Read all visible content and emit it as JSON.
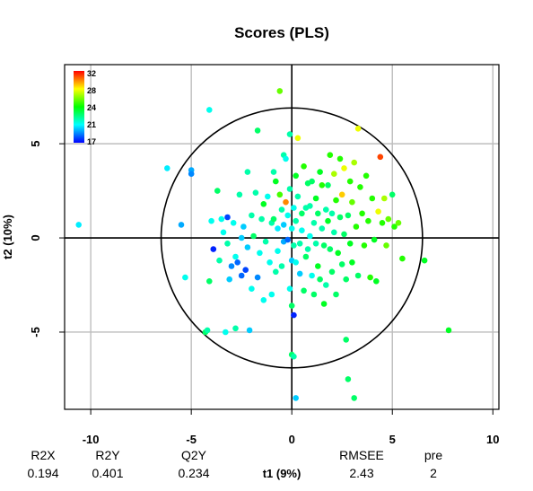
{
  "chart_data": {
    "type": "scatter",
    "title": "Scores (PLS)",
    "xlabel": "t1 (9%)",
    "ylabel": "t2 (10%)",
    "xlim": [
      -11.3,
      10.3
    ],
    "ylim": [
      -9.1,
      9.2
    ],
    "x_ticks": [
      -10,
      -5,
      0,
      5,
      10
    ],
    "y_ticks": [
      -5,
      0,
      5
    ],
    "grid": true,
    "reference_lines": [
      {
        "axis": "x",
        "value": 0
      },
      {
        "axis": "y",
        "value": 0
      }
    ],
    "ellipse": {
      "center": [
        0,
        0
      ],
      "rx": 6.5,
      "ry": 6.9
    },
    "color_scale": {
      "label_values": [
        "32",
        "28",
        "24",
        "21",
        "17"
      ],
      "min": 17,
      "max": 32,
      "colors": [
        "#0000ff",
        "#00ffff",
        "#00ff00",
        "#ffff00",
        "#ff0000"
      ]
    },
    "points": [
      {
        "x": -10.6,
        "y": 0.7,
        "c": 20.5
      },
      {
        "x": -6.2,
        "y": 3.7,
        "c": 20.5
      },
      {
        "x": -5.5,
        "y": 0.7,
        "c": 19.5
      },
      {
        "x": -5.3,
        "y": -2.1,
        "c": 21
      },
      {
        "x": -5.0,
        "y": 3.6,
        "c": 19.5
      },
      {
        "x": -5.0,
        "y": 3.4,
        "c": 19
      },
      {
        "x": -4.3,
        "y": -5.0,
        "c": 23
      },
      {
        "x": -4.2,
        "y": -4.9,
        "c": 22
      },
      {
        "x": -4.1,
        "y": 6.8,
        "c": 21
      },
      {
        "x": -4.1,
        "y": -2.3,
        "c": 23
      },
      {
        "x": -4.0,
        "y": 0.9,
        "c": 21
      },
      {
        "x": -3.9,
        "y": -0.6,
        "c": 17.5
      },
      {
        "x": -3.7,
        "y": 2.5,
        "c": 23
      },
      {
        "x": -3.6,
        "y": -1.2,
        "c": 22
      },
      {
        "x": -3.5,
        "y": 1.0,
        "c": 21
      },
      {
        "x": -3.4,
        "y": 0.3,
        "c": 21
      },
      {
        "x": -3.3,
        "y": -5.0,
        "c": 21
      },
      {
        "x": -3.2,
        "y": 1.1,
        "c": 18
      },
      {
        "x": -3.2,
        "y": -0.3,
        "c": 22
      },
      {
        "x": -3.1,
        "y": -2.2,
        "c": 20
      },
      {
        "x": -3.0,
        "y": -1.5,
        "c": 19
      },
      {
        "x": -2.9,
        "y": 0.8,
        "c": 21
      },
      {
        "x": -2.8,
        "y": -4.8,
        "c": 22
      },
      {
        "x": -2.8,
        "y": -1.0,
        "c": 21
      },
      {
        "x": -2.7,
        "y": -1.3,
        "c": 18.5
      },
      {
        "x": -2.6,
        "y": 2.3,
        "c": 22
      },
      {
        "x": -2.5,
        "y": 0.0,
        "c": 20
      },
      {
        "x": -2.5,
        "y": -2.0,
        "c": 18.5
      },
      {
        "x": -2.4,
        "y": 0.6,
        "c": 20
      },
      {
        "x": -2.3,
        "y": -1.7,
        "c": 18
      },
      {
        "x": -2.2,
        "y": 3.5,
        "c": 22
      },
      {
        "x": -2.2,
        "y": -0.5,
        "c": 20
      },
      {
        "x": -2.1,
        "y": -4.9,
        "c": 20
      },
      {
        "x": -2.0,
        "y": 1.2,
        "c": 22
      },
      {
        "x": -2.0,
        "y": -2.7,
        "c": 21
      },
      {
        "x": -1.9,
        "y": 0.1,
        "c": 23
      },
      {
        "x": -1.8,
        "y": 2.4,
        "c": 22
      },
      {
        "x": -1.7,
        "y": 5.7,
        "c": 23
      },
      {
        "x": -1.7,
        "y": -2.1,
        "c": 19
      },
      {
        "x": -1.6,
        "y": -0.8,
        "c": 21
      },
      {
        "x": -1.5,
        "y": 1.0,
        "c": 22
      },
      {
        "x": -1.4,
        "y": 1.8,
        "c": 24
      },
      {
        "x": -1.4,
        "y": -3.3,
        "c": 21
      },
      {
        "x": -1.3,
        "y": -0.2,
        "c": 22
      },
      {
        "x": -1.2,
        "y": 2.2,
        "c": 21
      },
      {
        "x": -1.1,
        "y": -1.3,
        "c": 21
      },
      {
        "x": -1.0,
        "y": 0.8,
        "c": 22
      },
      {
        "x": -1.0,
        "y": -3.0,
        "c": 21
      },
      {
        "x": -0.9,
        "y": 3.5,
        "c": 22
      },
      {
        "x": -0.9,
        "y": 1.0,
        "c": 23
      },
      {
        "x": -0.8,
        "y": -1.8,
        "c": 22
      },
      {
        "x": -0.8,
        "y": 3.0,
        "c": 24
      },
      {
        "x": -0.7,
        "y": 0.5,
        "c": 20.5
      },
      {
        "x": -0.7,
        "y": -0.7,
        "c": 21
      },
      {
        "x": -0.6,
        "y": 2.3,
        "c": 25.5
      },
      {
        "x": -0.6,
        "y": 7.8,
        "c": 26
      },
      {
        "x": -0.5,
        "y": 1.5,
        "c": 22
      },
      {
        "x": -0.5,
        "y": -1.5,
        "c": 22
      },
      {
        "x": -0.4,
        "y": -0.2,
        "c": 19.5
      },
      {
        "x": -0.4,
        "y": 4.4,
        "c": 22
      },
      {
        "x": -0.4,
        "y": 0.7,
        "c": 20
      },
      {
        "x": -0.3,
        "y": 1.9,
        "c": 30
      },
      {
        "x": -0.3,
        "y": 4.2,
        "c": 21
      },
      {
        "x": -0.2,
        "y": -0.1,
        "c": 18.5
      },
      {
        "x": -0.2,
        "y": 1.2,
        "c": 21
      },
      {
        "x": -0.1,
        "y": 2.6,
        "c": 22
      },
      {
        "x": -0.1,
        "y": -2.7,
        "c": 21
      },
      {
        "x": -0.1,
        "y": 5.5,
        "c": 22
      },
      {
        "x": 0.0,
        "y": 0.5,
        "c": 21
      },
      {
        "x": 0.0,
        "y": -1.2,
        "c": 20
      },
      {
        "x": 0.0,
        "y": -6.2,
        "c": 23
      },
      {
        "x": 0.0,
        "y": -3.6,
        "c": 23
      },
      {
        "x": 0.1,
        "y": 1.6,
        "c": 21
      },
      {
        "x": 0.1,
        "y": -0.4,
        "c": 22
      },
      {
        "x": 0.1,
        "y": -4.1,
        "c": 17.5
      },
      {
        "x": 0.1,
        "y": -6.3,
        "c": 22
      },
      {
        "x": 0.2,
        "y": 3.3,
        "c": 24
      },
      {
        "x": 0.2,
        "y": 0.9,
        "c": 22
      },
      {
        "x": 0.2,
        "y": -1.3,
        "c": 21
      },
      {
        "x": 0.2,
        "y": -8.5,
        "c": 20
      },
      {
        "x": 0.3,
        "y": 5.3,
        "c": 28
      },
      {
        "x": 0.3,
        "y": 2.2,
        "c": 22
      },
      {
        "x": 0.4,
        "y": -0.3,
        "c": 22
      },
      {
        "x": 0.4,
        "y": -1.9,
        "c": 20
      },
      {
        "x": 0.5,
        "y": 1.3,
        "c": 23
      },
      {
        "x": 0.5,
        "y": 0.4,
        "c": 21
      },
      {
        "x": 0.6,
        "y": 3.8,
        "c": 25
      },
      {
        "x": 0.6,
        "y": -2.8,
        "c": 23
      },
      {
        "x": 0.7,
        "y": 1.6,
        "c": 22
      },
      {
        "x": 0.7,
        "y": -1.0,
        "c": 23
      },
      {
        "x": 0.8,
        "y": 2.9,
        "c": 23
      },
      {
        "x": 0.8,
        "y": -0.6,
        "c": 22
      },
      {
        "x": 0.9,
        "y": 1.7,
        "c": 22
      },
      {
        "x": 0.9,
        "y": 0.1,
        "c": 21
      },
      {
        "x": 1.0,
        "y": -2.0,
        "c": 21
      },
      {
        "x": 1.0,
        "y": 3.0,
        "c": 23
      },
      {
        "x": 1.1,
        "y": 0.8,
        "c": 22
      },
      {
        "x": 1.1,
        "y": -3.0,
        "c": 23
      },
      {
        "x": 1.2,
        "y": 2.1,
        "c": 24
      },
      {
        "x": 1.2,
        "y": -0.3,
        "c": 22
      },
      {
        "x": 1.3,
        "y": 1.3,
        "c": 23
      },
      {
        "x": 1.3,
        "y": -1.5,
        "c": 24
      },
      {
        "x": 1.4,
        "y": 3.5,
        "c": 24
      },
      {
        "x": 1.4,
        "y": -2.2,
        "c": 23
      },
      {
        "x": 1.5,
        "y": 0.5,
        "c": 22
      },
      {
        "x": 1.5,
        "y": 2.8,
        "c": 25
      },
      {
        "x": 1.6,
        "y": -0.4,
        "c": 23
      },
      {
        "x": 1.6,
        "y": -3.5,
        "c": 24
      },
      {
        "x": 1.7,
        "y": 1.5,
        "c": 22
      },
      {
        "x": 1.7,
        "y": -2.5,
        "c": 22
      },
      {
        "x": 1.8,
        "y": 2.8,
        "c": 23
      },
      {
        "x": 1.8,
        "y": 0.9,
        "c": 24
      },
      {
        "x": 1.9,
        "y": -0.6,
        "c": 23
      },
      {
        "x": 1.9,
        "y": 4.4,
        "c": 25
      },
      {
        "x": 2.0,
        "y": 1.3,
        "c": 22
      },
      {
        "x": 2.0,
        "y": -1.8,
        "c": 23
      },
      {
        "x": 2.1,
        "y": 3.4,
        "c": 27
      },
      {
        "x": 2.1,
        "y": 0.3,
        "c": 22
      },
      {
        "x": 2.2,
        "y": -3.0,
        "c": 23
      },
      {
        "x": 2.2,
        "y": 2.0,
        "c": 25
      },
      {
        "x": 2.3,
        "y": -0.8,
        "c": 24
      },
      {
        "x": 2.4,
        "y": 1.1,
        "c": 23
      },
      {
        "x": 2.4,
        "y": 4.2,
        "c": 25
      },
      {
        "x": 2.5,
        "y": -1.4,
        "c": 23
      },
      {
        "x": 2.5,
        "y": 2.3,
        "c": 29
      },
      {
        "x": 2.6,
        "y": 3.7,
        "c": 28
      },
      {
        "x": 2.6,
        "y": 0.2,
        "c": 23
      },
      {
        "x": 2.7,
        "y": -2.2,
        "c": 23
      },
      {
        "x": 2.7,
        "y": -5.4,
        "c": 23
      },
      {
        "x": 2.8,
        "y": 1.2,
        "c": 23
      },
      {
        "x": 2.8,
        "y": -7.5,
        "c": 23
      },
      {
        "x": 2.9,
        "y": 3.0,
        "c": 25
      },
      {
        "x": 2.9,
        "y": -0.3,
        "c": 24
      },
      {
        "x": 3.0,
        "y": 1.9,
        "c": 26
      },
      {
        "x": 3.0,
        "y": -1.3,
        "c": 24
      },
      {
        "x": 3.1,
        "y": 4.0,
        "c": 27
      },
      {
        "x": 3.1,
        "y": -8.5,
        "c": 23
      },
      {
        "x": 3.2,
        "y": 0.6,
        "c": 25
      },
      {
        "x": 3.3,
        "y": 5.8,
        "c": 28
      },
      {
        "x": 3.3,
        "y": -2.0,
        "c": 23
      },
      {
        "x": 3.4,
        "y": 2.7,
        "c": 25
      },
      {
        "x": 3.5,
        "y": 1.3,
        "c": 25
      },
      {
        "x": 3.6,
        "y": -0.4,
        "c": 25
      },
      {
        "x": 3.7,
        "y": 3.3,
        "c": 25
      },
      {
        "x": 3.8,
        "y": 0.9,
        "c": 25
      },
      {
        "x": 3.9,
        "y": -2.1,
        "c": 25
      },
      {
        "x": 4.0,
        "y": 2.1,
        "c": 25
      },
      {
        "x": 4.1,
        "y": -0.1,
        "c": 24
      },
      {
        "x": 4.2,
        "y": -2.3,
        "c": 24
      },
      {
        "x": 4.3,
        "y": 1.4,
        "c": 28
      },
      {
        "x": 4.4,
        "y": 4.3,
        "c": 31
      },
      {
        "x": 4.5,
        "y": 0.8,
        "c": 25
      },
      {
        "x": 4.6,
        "y": 2.1,
        "c": 27
      },
      {
        "x": 4.7,
        "y": -0.4,
        "c": 26
      },
      {
        "x": 4.8,
        "y": 1.0,
        "c": 26
      },
      {
        "x": 5.0,
        "y": 2.3,
        "c": 23
      },
      {
        "x": 5.1,
        "y": 0.6,
        "c": 25
      },
      {
        "x": 5.3,
        "y": 0.8,
        "c": 26
      },
      {
        "x": 5.5,
        "y": -1.1,
        "c": 25
      },
      {
        "x": 6.6,
        "y": -1.2,
        "c": 24
      },
      {
        "x": 7.8,
        "y": -4.9,
        "c": 24
      }
    ]
  },
  "stats": {
    "headers": [
      "R2X",
      "R2Y",
      "Q2Y",
      "RMSEE",
      "pre"
    ],
    "values": [
      "0.194",
      "0.401",
      "0.234",
      "2.43",
      "2"
    ]
  }
}
